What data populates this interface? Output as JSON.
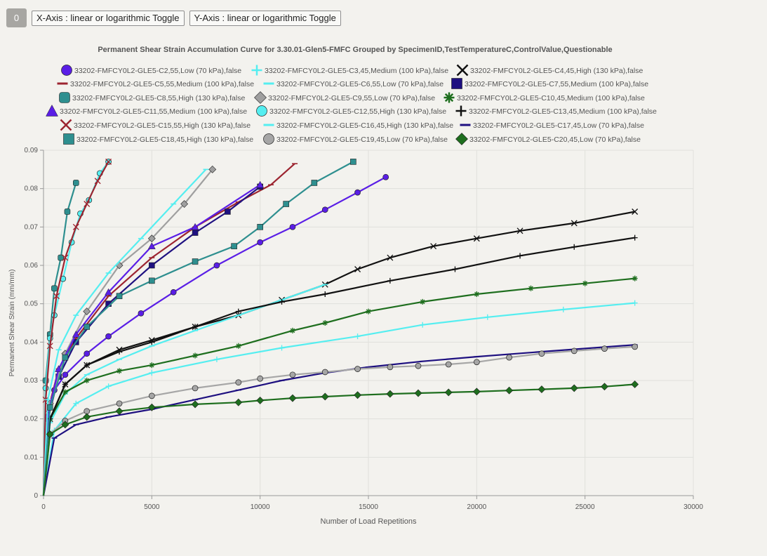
{
  "toolbar": {
    "counter": "0",
    "x_toggle": "X-Axis : linear or logarithmic Toggle",
    "y_toggle": "Y-Axis : linear or logarithmic Toggle"
  },
  "chart_data": {
    "type": "line",
    "title": "Permanent Shear Strain Accumulation Curve for 3.30.01-Glen5-FMFC Grouped by SpecimenID,TestTemperatureC,ControlValue,Questionable",
    "xlabel": "Number of Load Repetitions",
    "ylabel": "Permanent Shear Strain (mm/mm)",
    "xlim": [
      0,
      30000
    ],
    "ylim": [
      0,
      0.09
    ],
    "x_ticks": [
      0,
      5000,
      10000,
      15000,
      20000,
      25000,
      30000
    ],
    "y_ticks": [
      "0",
      "0.01",
      "0.02",
      "0.03",
      "0.04",
      "0.05",
      "0.06",
      "0.07",
      "0.08",
      "0.09"
    ],
    "grid": true,
    "legend_position": "top",
    "series": [
      {
        "name": "33202-FMFCY0L2-GLE5-C2,55,Low (70 kPa),false",
        "color": "#5a1ee6",
        "marker": "circle",
        "x": [
          0,
          200,
          500,
          1000,
          2000,
          3000,
          4500,
          6000,
          8000,
          10000,
          11500,
          13000,
          14500,
          15800
        ],
        "y": [
          0,
          0.02,
          0.0275,
          0.0315,
          0.037,
          0.0415,
          0.0475,
          0.053,
          0.06,
          0.066,
          0.07,
          0.0745,
          0.079,
          0.083
        ]
      },
      {
        "name": "33202-FMFCY0L2-GLE5-C3,45,Medium (100 kPa),false",
        "color": "#55eef0",
        "marker": "plus",
        "x": [
          0,
          500,
          1500,
          3000,
          5000,
          8000,
          11000,
          14500,
          17500,
          20500,
          24000,
          27300
        ],
        "y": [
          0,
          0.017,
          0.024,
          0.0285,
          0.032,
          0.0355,
          0.0385,
          0.0415,
          0.0445,
          0.0465,
          0.0485,
          0.0502
        ]
      },
      {
        "name": "33202-FMFCY0L2-GLE5-C4,45,High (130 kPa),false",
        "color": "#111111",
        "marker": "x",
        "x": [
          0,
          300,
          1000,
          2000,
          3500,
          5000,
          7000,
          9000,
          11000,
          13000,
          14500,
          16000,
          18000,
          20000,
          22000,
          24500,
          27300
        ],
        "y": [
          0,
          0.02,
          0.029,
          0.034,
          0.038,
          0.0405,
          0.044,
          0.047,
          0.051,
          0.055,
          0.059,
          0.062,
          0.065,
          0.067,
          0.069,
          0.071,
          0.074
        ]
      },
      {
        "name": "33202-FMFCY0L2-GLE5-C5,55,Medium (100 kPa),false",
        "color": "#9c2430",
        "marker": "dash",
        "x": [
          0,
          200,
          700,
          1500,
          3000,
          5000,
          7000,
          9000,
          10500,
          11600
        ],
        "y": [
          0,
          0.022,
          0.033,
          0.041,
          0.052,
          0.062,
          0.07,
          0.0765,
          0.081,
          0.0865
        ]
      },
      {
        "name": "33202-FMFCY0L2-GLE5-C6,55,Low (70 kPa),false",
        "color": "#55eef0",
        "marker": "dash",
        "x": [
          0,
          300,
          1000,
          2000,
          3500,
          5000,
          7000,
          9000,
          11000,
          13000
        ],
        "y": [
          0,
          0.019,
          0.0265,
          0.0315,
          0.0355,
          0.039,
          0.043,
          0.047,
          0.051,
          0.055
        ]
      },
      {
        "name": "33202-FMFCY0L2-GLE5-C7,55,Medium (100 kPa),false",
        "color": "#1e1080",
        "marker": "square",
        "x": [
          0,
          200,
          700,
          1500,
          3000,
          5000,
          7000,
          8500,
          10000
        ],
        "y": [
          0,
          0.02,
          0.031,
          0.04,
          0.05,
          0.06,
          0.0685,
          0.074,
          0.0805
        ]
      },
      {
        "name": "33202-FMFCY0L2-GLE5-C8,55,High (130 kPa),false",
        "color": "#2e8f8f",
        "marker": "rsquare",
        "x": [
          0,
          100,
          300,
          500,
          800,
          1100,
          1500
        ],
        "y": [
          0,
          0.03,
          0.042,
          0.054,
          0.062,
          0.074,
          0.0815
        ]
      },
      {
        "name": "33202-FMFCY0L2-GLE5-C9,55,Low (70 kPa),false",
        "color": "#9f9f9f",
        "marker": "diamond",
        "x": [
          0,
          300,
          1000,
          2000,
          3500,
          5000,
          6500,
          7800
        ],
        "y": [
          0,
          0.024,
          0.037,
          0.048,
          0.06,
          0.067,
          0.076,
          0.085
        ]
      },
      {
        "name": "33202-FMFCY0L2-GLE5-C10,45,Medium (100 kPa),false",
        "color": "#1e6e1e",
        "marker": "star",
        "x": [
          0,
          300,
          1000,
          2000,
          3500,
          5000,
          7000,
          9000,
          11500,
          13000,
          15000,
          17500,
          20000,
          22500,
          25000,
          27300
        ],
        "y": [
          0,
          0.02,
          0.027,
          0.03,
          0.0325,
          0.034,
          0.0365,
          0.039,
          0.043,
          0.045,
          0.048,
          0.0505,
          0.0525,
          0.054,
          0.0553,
          0.0566
        ]
      },
      {
        "name": "33202-FMFCY0L2-GLE5-C11,55,Medium (100 kPa),false",
        "color": "#5a1ee6",
        "marker": "triangle",
        "x": [
          0,
          200,
          700,
          1500,
          3000,
          5000,
          7000,
          10000
        ],
        "y": [
          0,
          0.021,
          0.033,
          0.042,
          0.053,
          0.065,
          0.07,
          0.081
        ]
      },
      {
        "name": "33202-FMFCY0L2-GLE5-C12,55,High (130 kPa),false",
        "color": "#55eef0",
        "marker": "circle",
        "x": [
          0,
          100,
          300,
          500,
          900,
          1300,
          1700,
          2100,
          2600,
          3000
        ],
        "y": [
          0,
          0.028,
          0.041,
          0.047,
          0.0565,
          0.066,
          0.0735,
          0.077,
          0.084,
          0.087
        ]
      },
      {
        "name": "33202-FMFCY0L2-GLE5-C13,45,Medium (100 kPa),false",
        "color": "#111111",
        "marker": "plus",
        "x": [
          0,
          300,
          1000,
          2000,
          3500,
          5000,
          7000,
          9000,
          11000,
          13000,
          16000,
          19000,
          22000,
          24500,
          27300
        ],
        "y": [
          0,
          0.02,
          0.029,
          0.034,
          0.0375,
          0.04,
          0.044,
          0.048,
          0.0505,
          0.0525,
          0.056,
          0.059,
          0.0625,
          0.0648,
          0.0672
        ]
      },
      {
        "name": "33202-FMFCY0L2-GLE5-C15,55,High (130 kPa),false",
        "color": "#9c2430",
        "marker": "x",
        "x": [
          0,
          100,
          300,
          600,
          1000,
          1500,
          2000,
          2500,
          3000
        ],
        "y": [
          0,
          0.025,
          0.039,
          0.052,
          0.062,
          0.07,
          0.076,
          0.082,
          0.087
        ]
      },
      {
        "name": "33202-FMFCY0L2-GLE5-C16,45,High (130 kPa),false",
        "color": "#55eef0",
        "marker": "dash",
        "x": [
          0,
          200,
          700,
          1500,
          3000,
          4500,
          6000,
          7500
        ],
        "y": [
          0,
          0.025,
          0.038,
          0.047,
          0.058,
          0.067,
          0.076,
          0.085
        ]
      },
      {
        "name": "33202-FMFCY0L2-GLE5-C17,45,Low (70 kPa),false",
        "color": "#1e1080",
        "marker": "dash",
        "x": [
          0,
          500,
          1500,
          3000,
          5000,
          7000,
          9000,
          11000,
          13000,
          15000,
          17500,
          20000,
          23000,
          27300
        ],
        "y": [
          0,
          0.015,
          0.0185,
          0.0205,
          0.0225,
          0.025,
          0.0275,
          0.03,
          0.032,
          0.0335,
          0.035,
          0.0362,
          0.0375,
          0.0393
        ]
      },
      {
        "name": "33202-FMFCY0L2-GLE5-C18,45,High (130 kPa),false",
        "color": "#2e8f8f",
        "marker": "square",
        "x": [
          0,
          300,
          1000,
          2000,
          3500,
          5000,
          7000,
          8800,
          10000,
          11200,
          12500,
          14300
        ],
        "y": [
          0,
          0.023,
          0.036,
          0.044,
          0.052,
          0.056,
          0.061,
          0.065,
          0.07,
          0.076,
          0.0815,
          0.087
        ]
      },
      {
        "name": "33202-FMFCY0L2-GLE5-C19,45,Low (70 kPa),false",
        "color": "#a6a6a6",
        "marker": "circle",
        "x": [
          0,
          300,
          1000,
          2000,
          3500,
          5000,
          7000,
          9000,
          10000,
          11500,
          13000,
          14500,
          16000,
          17300,
          18700,
          20000,
          21500,
          23000,
          24500,
          25900,
          27300
        ],
        "y": [
          0,
          0.016,
          0.0195,
          0.022,
          0.024,
          0.026,
          0.028,
          0.0295,
          0.0305,
          0.0315,
          0.0322,
          0.033,
          0.0335,
          0.0338,
          0.0342,
          0.0348,
          0.036,
          0.037,
          0.0377,
          0.0383,
          0.0388
        ]
      },
      {
        "name": "33202-FMFCY0L2-GLE5-C20,45,Low (70 kPa),false",
        "color": "#1e6e1e",
        "marker": "diamond",
        "x": [
          0,
          300,
          1000,
          2000,
          3500,
          5000,
          7000,
          9000,
          10000,
          11500,
          13000,
          14500,
          16000,
          17300,
          18700,
          20000,
          21500,
          23000,
          24500,
          25900,
          27300
        ],
        "y": [
          0,
          0.016,
          0.0185,
          0.0205,
          0.022,
          0.023,
          0.0238,
          0.0243,
          0.0248,
          0.0254,
          0.0258,
          0.0262,
          0.0265,
          0.0267,
          0.0269,
          0.0271,
          0.0274,
          0.0277,
          0.028,
          0.0284,
          0.029
        ]
      }
    ]
  }
}
